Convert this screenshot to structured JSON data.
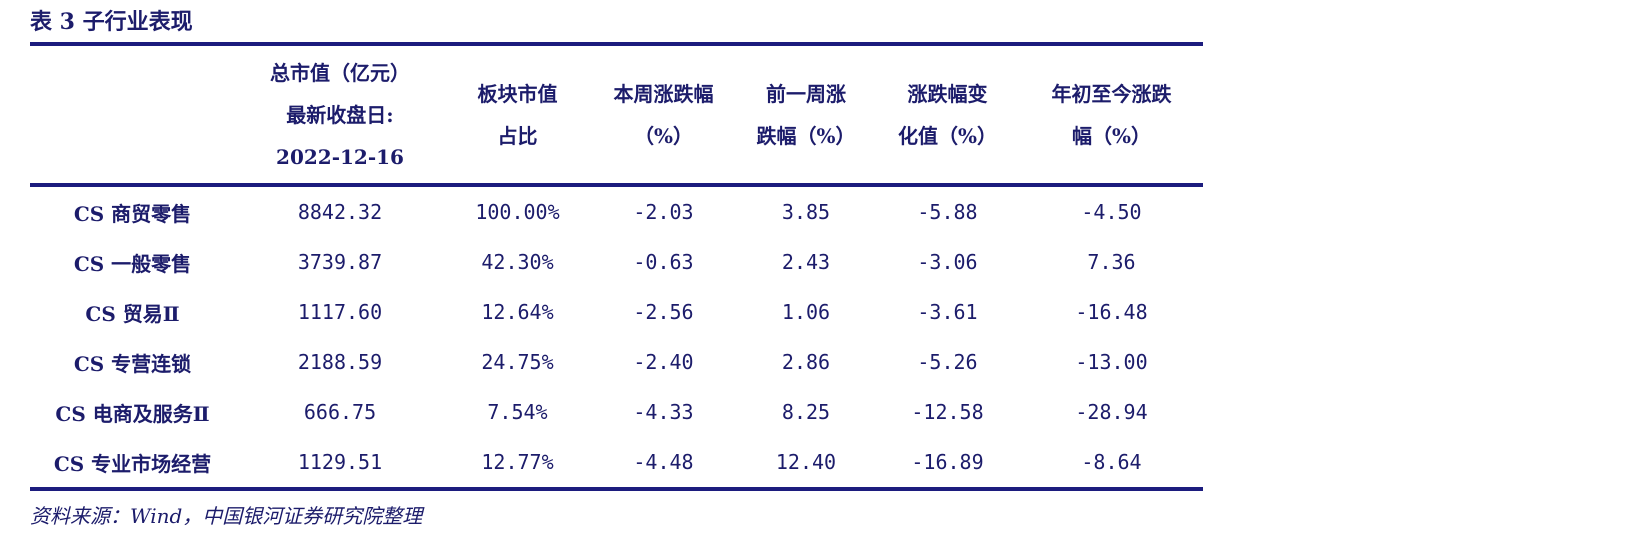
{
  "header": {
    "title": "表 3 子行业表现"
  },
  "table": {
    "headers": [
      [
        "总市值（亿元）",
        "最新收盘日:",
        "2022-12-16"
      ],
      [
        "板块市值",
        "占比"
      ],
      [
        "本周涨跌幅",
        "（%）"
      ],
      [
        "前一周涨",
        "跌幅（%）"
      ],
      [
        "涨跌幅变",
        "化值（%）"
      ],
      [
        "年初至今涨跌",
        "幅（%）"
      ]
    ],
    "rows": [
      [
        "CS 商贸零售",
        "8842.32",
        "100.00%",
        "-2.03",
        "3.85",
        "-5.88",
        "-4.50"
      ],
      [
        "CS 一般零售",
        "3739.87",
        "42.30%",
        "-0.63",
        "2.43",
        "-3.06",
        "7.36"
      ],
      [
        "CS 贸易Ⅱ",
        "1117.60",
        "12.64%",
        "-2.56",
        "1.06",
        "-3.61",
        "-16.48"
      ],
      [
        "CS 专营连锁",
        "2188.59",
        "24.75%",
        "-2.40",
        "2.86",
        "-5.26",
        "-13.00"
      ],
      [
        "CS 电商及服务Ⅱ",
        "666.75",
        "7.54%",
        "-4.33",
        "8.25",
        "-12.58",
        "-28.94"
      ],
      [
        "CS 专业市场经营",
        "1129.51",
        "12.77%",
        "-4.48",
        "12.40",
        "-16.89",
        "-8.64"
      ]
    ]
  },
  "footer": {
    "source": "资料来源：Wind，中国银河证券研究院整理"
  }
}
